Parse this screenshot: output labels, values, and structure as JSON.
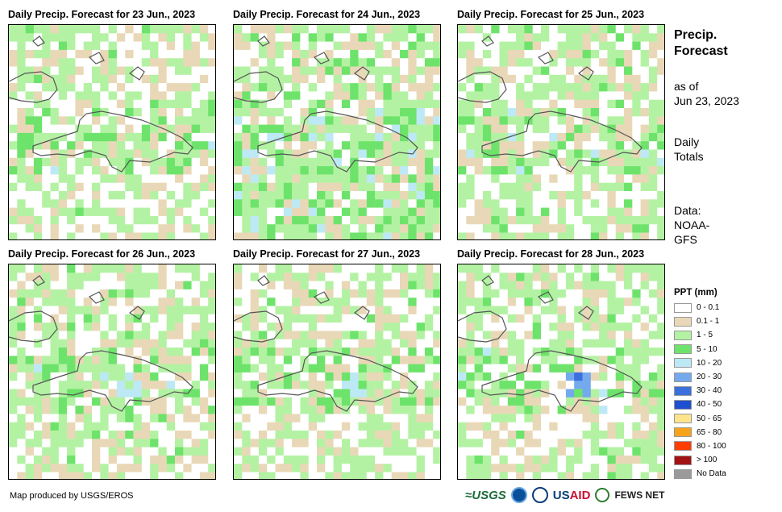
{
  "panels": [
    {
      "title": "Daily Precip. Forecast for 23 Jun., 2023"
    },
    {
      "title": "Daily Precip. Forecast for 24 Jun., 2023"
    },
    {
      "title": "Daily Precip. Forecast for 25 Jun., 2023"
    },
    {
      "title": "Daily Precip. Forecast for 26 Jun., 2023"
    },
    {
      "title": "Daily Precip. Forecast for 27 Jun., 2023"
    },
    {
      "title": "Daily Precip. Forecast for 28 Jun., 2023"
    }
  ],
  "sidebar": {
    "title_line1": "Precip.",
    "title_line2": "Forecast",
    "asof_line1": "as of",
    "asof_line2": "Jun 23, 2023",
    "totals_line1": "Daily",
    "totals_line2": "Totals",
    "source_line1": "Data:",
    "source_line2": "NOAA-",
    "source_line3": "GFS"
  },
  "legend": {
    "title": "PPT (mm)",
    "classes": [
      {
        "label": "0 - 0.1",
        "color": "#ffffff"
      },
      {
        "label": "0.1 - 1",
        "color": "#e9d8b7"
      },
      {
        "label": "1 - 5",
        "color": "#b3f2a3"
      },
      {
        "label": "5 - 10",
        "color": "#6ee36b"
      },
      {
        "label": "10 - 20",
        "color": "#bde9f5"
      },
      {
        "label": "20 - 30",
        "color": "#74a9ee"
      },
      {
        "label": "30 - 40",
        "color": "#3b6fdc"
      },
      {
        "label": "40 - 50",
        "color": "#1f4fd1"
      },
      {
        "label": "50 - 65",
        "color": "#fde38c"
      },
      {
        "label": "65 - 80",
        "color": "#f7a21b"
      },
      {
        "label": "80 - 100",
        "color": "#ff3d00"
      },
      {
        "label": "> 100",
        "color": "#a31212"
      },
      {
        "label": "No Data",
        "color": "#9a9a9a"
      }
    ]
  },
  "footer": {
    "credit": "Map produced by USGS/EROS",
    "logo_usgs": "≈USGS",
    "logo_usaid_a": "US",
    "logo_usaid_b": "AID",
    "logo_fews": "FEWS NET"
  }
}
